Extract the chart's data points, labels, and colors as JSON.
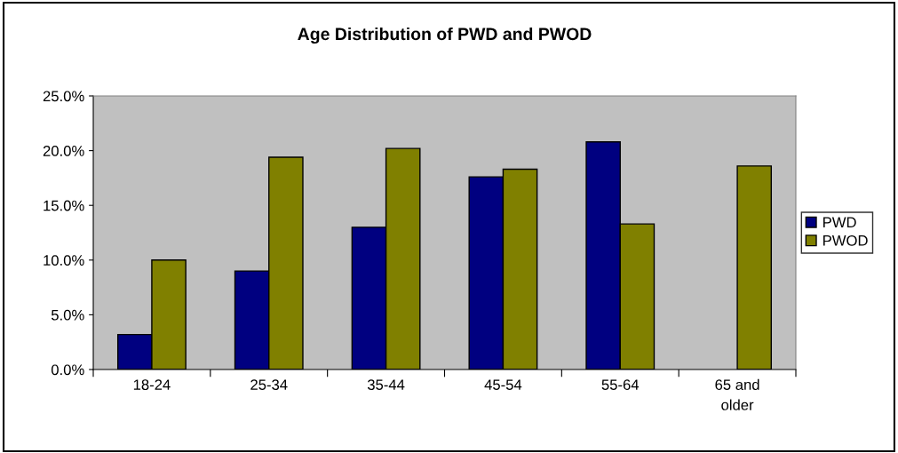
{
  "chart_data": {
    "type": "bar",
    "title": "Age Distribution of PWD and PWOD",
    "categories": [
      "18-24",
      "25-34",
      "35-44",
      "45-54",
      "55-64",
      "65 and\nolder"
    ],
    "series": [
      {
        "name": "PWD",
        "color": "#000080",
        "values": [
          3.2,
          9.0,
          13.0,
          17.6,
          20.8,
          null
        ]
      },
      {
        "name": "PWOD",
        "color": "#808000",
        "values": [
          10.0,
          19.4,
          20.2,
          18.3,
          13.3,
          18.6
        ]
      }
    ],
    "ylim": [
      0,
      25
    ],
    "yticks": [
      {
        "value": 0,
        "label": "0.0%"
      },
      {
        "value": 5,
        "label": "5.0%"
      },
      {
        "value": 10,
        "label": "10.0%"
      },
      {
        "value": 15,
        "label": "15.0%"
      },
      {
        "value": 20,
        "label": "20.0%"
      },
      {
        "value": 25,
        "label": "25.0%"
      }
    ],
    "grid": false,
    "legend": "right"
  }
}
